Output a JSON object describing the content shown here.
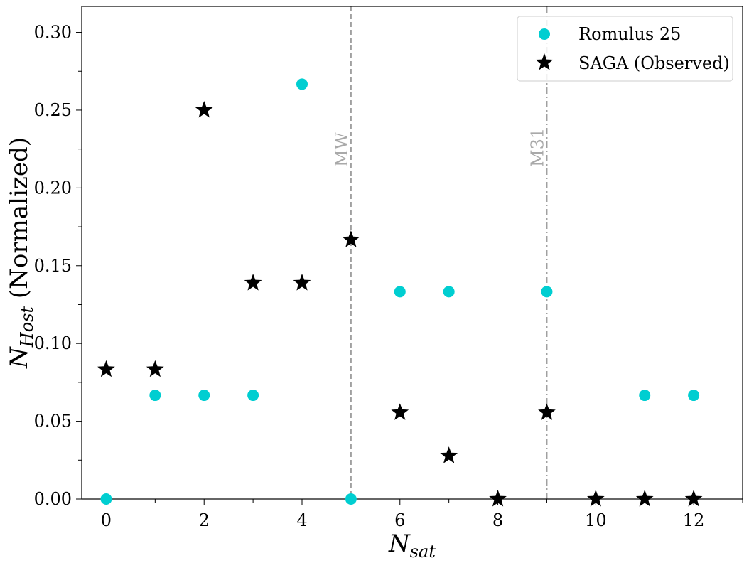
{
  "colors": {
    "romulus": "#00CED1",
    "saga": "#000000",
    "reference_line": "#a0a0a0",
    "reference_label": "#a9a9a9",
    "legend_border": "#cccccc"
  },
  "chart_data": {
    "type": "scatter",
    "xlabel_main": "N",
    "xlabel_sub": "sat",
    "ylabel_main": "N",
    "ylabel_sub": "Host",
    "ylabel_suffix": " (Normalized)",
    "xlim": [
      -0.5,
      13
    ],
    "ylim": [
      0,
      0.3167
    ],
    "xticks": [
      0,
      2,
      4,
      6,
      8,
      10,
      12
    ],
    "xtick_labels": [
      "0",
      "2",
      "4",
      "6",
      "8",
      "10",
      "12"
    ],
    "yticks": [
      0.0,
      0.05,
      0.1,
      0.15,
      0.2,
      0.25,
      0.3
    ],
    "ytick_labels": [
      "0.00",
      "0.05",
      "0.10",
      "0.15",
      "0.20",
      "0.25",
      "0.30"
    ],
    "legend_position": "top-right",
    "series": [
      {
        "name": "Romulus 25",
        "marker": "circle",
        "x": [
          0,
          1,
          2,
          3,
          4,
          5,
          6,
          7,
          9,
          11,
          12
        ],
        "y": [
          0.0,
          0.0667,
          0.0667,
          0.0667,
          0.2667,
          0.0,
          0.1333,
          0.1333,
          0.1333,
          0.0667,
          0.0667
        ]
      },
      {
        "name": "SAGA (Observed)",
        "marker": "star",
        "x": [
          0,
          1,
          2,
          3,
          4,
          5,
          6,
          7,
          8,
          9,
          10,
          11,
          12
        ],
        "y": [
          0.0833,
          0.0833,
          0.25,
          0.1389,
          0.1389,
          0.1667,
          0.0556,
          0.0278,
          0.0,
          0.0556,
          0.0,
          0.0,
          0.0
        ]
      }
    ],
    "reference_lines": [
      {
        "label": "MW",
        "x": 5,
        "style": "dashed"
      },
      {
        "label": "M31",
        "x": 9,
        "style": "dashdot"
      }
    ]
  }
}
